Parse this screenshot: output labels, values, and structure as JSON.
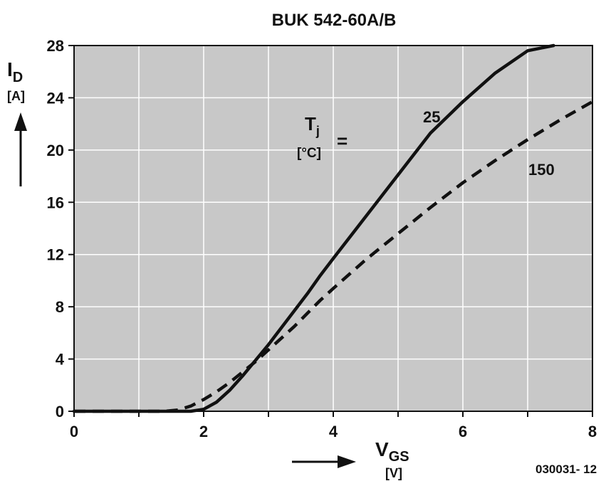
{
  "chart_data": {
    "type": "line",
    "title": "BUK 542-60A/B",
    "xlabel": {
      "main": "V",
      "sub": "GS",
      "unit": "[V]"
    },
    "ylabel": {
      "main": "I",
      "sub": "D",
      "unit": "[A]"
    },
    "xlim": [
      0,
      8
    ],
    "ylim": [
      0,
      28
    ],
    "xticks": [
      0,
      2,
      4,
      6,
      8
    ],
    "yticks": [
      0,
      4,
      8,
      12,
      16,
      20,
      24,
      28
    ],
    "grid": true,
    "legend_label": {
      "main": "T",
      "sub": "j",
      "unit": "[°C]",
      "eq": "="
    },
    "background": "#c8c8c8",
    "line_color": "#111111",
    "series": [
      {
        "name": "25",
        "style": "solid",
        "x": [
          0,
          1.0,
          1.6,
          1.8,
          2.0,
          2.2,
          2.4,
          2.6,
          2.8,
          3.0,
          3.2,
          3.4,
          3.6,
          3.8,
          4.0,
          4.5,
          5.0,
          5.5,
          6.0,
          6.5,
          7.0,
          7.4
        ],
        "y": [
          0,
          0,
          0,
          0,
          0.15,
          0.7,
          1.6,
          2.7,
          3.9,
          5.1,
          6.4,
          7.7,
          9.0,
          10.4,
          11.7,
          14.9,
          18.1,
          21.3,
          23.7,
          25.9,
          27.6,
          28.0
        ]
      },
      {
        "name": "150",
        "style": "dashed",
        "x": [
          0,
          1.4,
          1.6,
          1.8,
          2.0,
          2.2,
          2.4,
          2.6,
          2.8,
          3.0,
          3.2,
          3.4,
          3.6,
          3.8,
          4.0,
          4.5,
          5.0,
          5.5,
          6.0,
          6.5,
          7.0,
          7.5,
          8.0
        ],
        "y": [
          0,
          0,
          0.1,
          0.4,
          0.9,
          1.5,
          2.2,
          3.0,
          3.8,
          4.7,
          5.6,
          6.5,
          7.5,
          8.5,
          9.4,
          11.6,
          13.6,
          15.6,
          17.5,
          19.2,
          20.8,
          22.3,
          23.7
        ]
      }
    ]
  },
  "figure_id": "030031- 12"
}
